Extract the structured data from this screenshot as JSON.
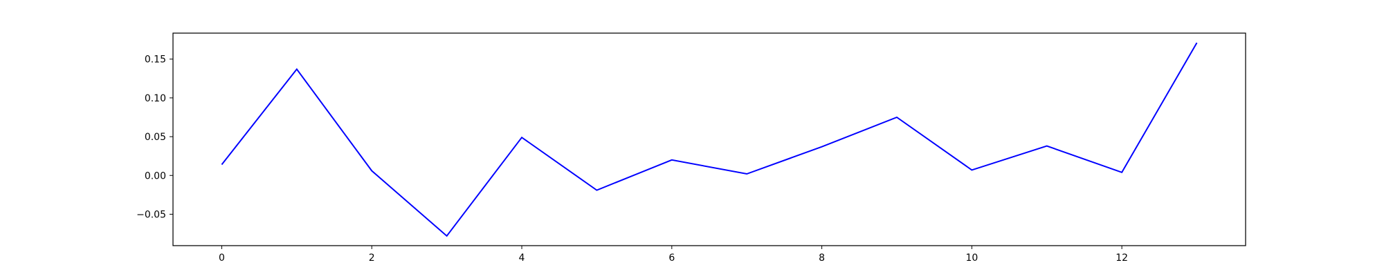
{
  "chart_data": {
    "type": "line",
    "title": "",
    "xlabel": "",
    "ylabel": "",
    "x": [
      0,
      1,
      2,
      3,
      4,
      5,
      6,
      7,
      8,
      9,
      10,
      11,
      12,
      13
    ],
    "series": [
      {
        "values": [
          0.014,
          0.137,
          0.006,
          -0.078,
          0.049,
          -0.019,
          0.02,
          0.002,
          0.037,
          0.075,
          0.007,
          0.038,
          0.004,
          0.171
        ],
        "color": "#0000ff"
      }
    ],
    "xlim": [
      -0.65,
      13.65
    ],
    "ylim": [
      -0.0905,
      0.1835
    ],
    "xticks": [
      0,
      2,
      4,
      6,
      8,
      10,
      12
    ],
    "xtick_labels": [
      "0",
      "2",
      "4",
      "6",
      "8",
      "10",
      "12"
    ],
    "yticks": [
      -0.05,
      0.0,
      0.05,
      0.1,
      0.15
    ],
    "ytick_labels": [
      "−0.05",
      "0.00",
      "0.05",
      "0.10",
      "0.15"
    ],
    "grid": false,
    "legend": "none"
  }
}
